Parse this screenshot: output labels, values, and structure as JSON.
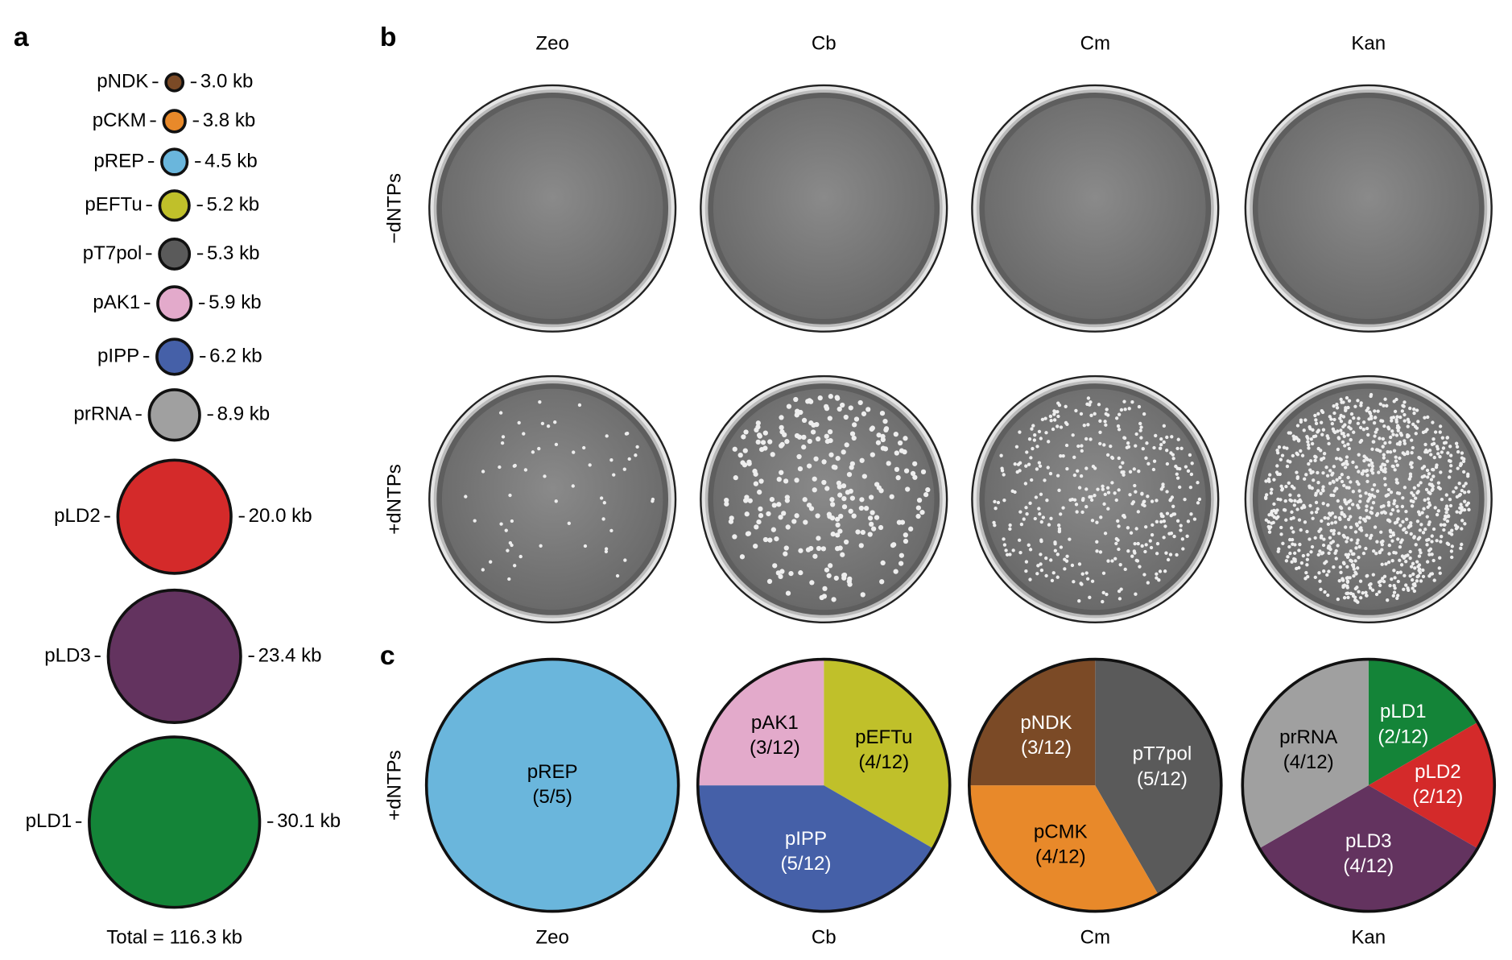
{
  "panel_labels": [
    "a",
    "b",
    "c"
  ],
  "panel_b": {
    "columns": [
      "Zeo",
      "Cb",
      "Cm",
      "Kan"
    ],
    "rows": [
      "−dNTPs",
      "+dNTPs"
    ]
  },
  "panel_c_row_label": "+dNTPs",
  "chart_data": [
    {
      "type": "bubble",
      "categories": [
        "pNDK",
        "pCKM",
        "pREP",
        "pEFTu",
        "pT7pol",
        "pAK1",
        "pIPP",
        "prRNA",
        "pLD2",
        "pLD3",
        "pLD1"
      ],
      "values": [
        3.0,
        3.8,
        4.5,
        5.2,
        5.3,
        5.9,
        6.2,
        8.9,
        20.0,
        23.4,
        30.1
      ],
      "value_labels": [
        "3.0 kb",
        "3.8 kb",
        "4.5 kb",
        "5.2 kb",
        "5.3 kb",
        "5.9 kb",
        "6.2 kb",
        "8.9 kb",
        "20.0 kb",
        "23.4 kb",
        "30.1 kb"
      ],
      "colors": [
        "#7b4a26",
        "#e8892a",
        "#6ab6dc",
        "#c0c02a",
        "#5a5a5a",
        "#e3aacb",
        "#4560a8",
        "#a0a0a0",
        "#d42a2a",
        "#63335f",
        "#148438"
      ],
      "total_label": "Total = 116.3 kb"
    },
    {
      "type": "pie",
      "title": "Zeo",
      "categories": [
        "pREP"
      ],
      "values": [
        5
      ],
      "value_labels": [
        "(5/5)"
      ],
      "colors": [
        "#6ab6dc"
      ]
    },
    {
      "type": "pie",
      "title": "Cb",
      "categories": [
        "pEFTu",
        "pIPP",
        "pAK1"
      ],
      "values": [
        4,
        5,
        3
      ],
      "value_labels": [
        "(4/12)",
        "(5/12)",
        "(3/12)"
      ],
      "colors": [
        "#c0c02a",
        "#4560a8",
        "#e3aacb"
      ]
    },
    {
      "type": "pie",
      "title": "Cm",
      "categories": [
        "pT7pol",
        "pCMK",
        "pNDK"
      ],
      "values": [
        5,
        4,
        3
      ],
      "value_labels": [
        "(5/12)",
        "(4/12)",
        "(3/12)"
      ],
      "colors": [
        "#5a5a5a",
        "#e8892a",
        "#7b4a26"
      ]
    },
    {
      "type": "pie",
      "title": "Kan",
      "categories": [
        "pLD1",
        "pLD2",
        "pLD3",
        "prRNA"
      ],
      "values": [
        2,
        2,
        4,
        4
      ],
      "value_labels": [
        "(2/12)",
        "(2/12)",
        "(4/12)",
        "(4/12)"
      ],
      "colors": [
        "#148438",
        "#d42a2a",
        "#63335f",
        "#a0a0a0"
      ]
    }
  ]
}
